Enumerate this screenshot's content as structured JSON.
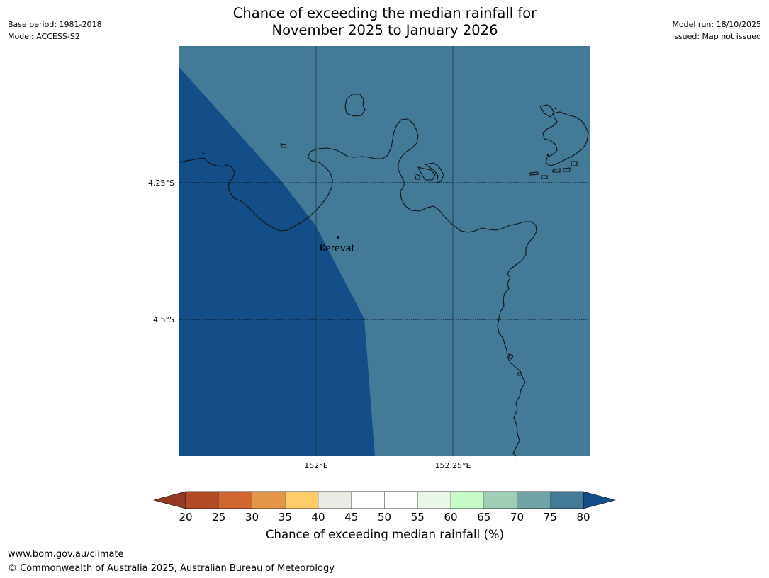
{
  "header": {
    "title_line1": "Chance of exceeding the median rainfall for",
    "title_line2": "November 2025 to January 2026",
    "base_period": "Base period: 1981-2018",
    "model": "Model: ACCESS-S2",
    "model_run": "Model run: 18/10/2025",
    "issued": "Issued: Map not issued"
  },
  "map": {
    "lat_labels": [
      "4.25°S",
      "4.5°S"
    ],
    "lon_labels": [
      "152°E",
      "152.25°E"
    ],
    "place": {
      "name": "Kerevat"
    },
    "colors": {
      "band_70_75": "#427a98",
      "band_above_80": "#134e89",
      "gridline": "#1f3a4a",
      "coast": "#111111"
    }
  },
  "colorbar": {
    "label": "Chance of exceeding median rainfall (%)",
    "ticks": [
      "20",
      "25",
      "30",
      "35",
      "40",
      "45",
      "50",
      "55",
      "60",
      "65",
      "70",
      "75",
      "80"
    ],
    "under_color": "#943a22",
    "over_color": "#134e89",
    "colors": [
      "#b24a25",
      "#d06530",
      "#e39548",
      "#fdcd6a",
      "#ebe9e4",
      "#ffffff",
      "#ffffff",
      "#e8f7e8",
      "#c6fbc8",
      "#9ecfb6",
      "#70a4a6",
      "#427a98"
    ]
  },
  "footer": {
    "url": "www.bom.gov.au/climate",
    "copyright": "© Commonwealth of Australia 2025, Australian Bureau of Meteorology"
  }
}
